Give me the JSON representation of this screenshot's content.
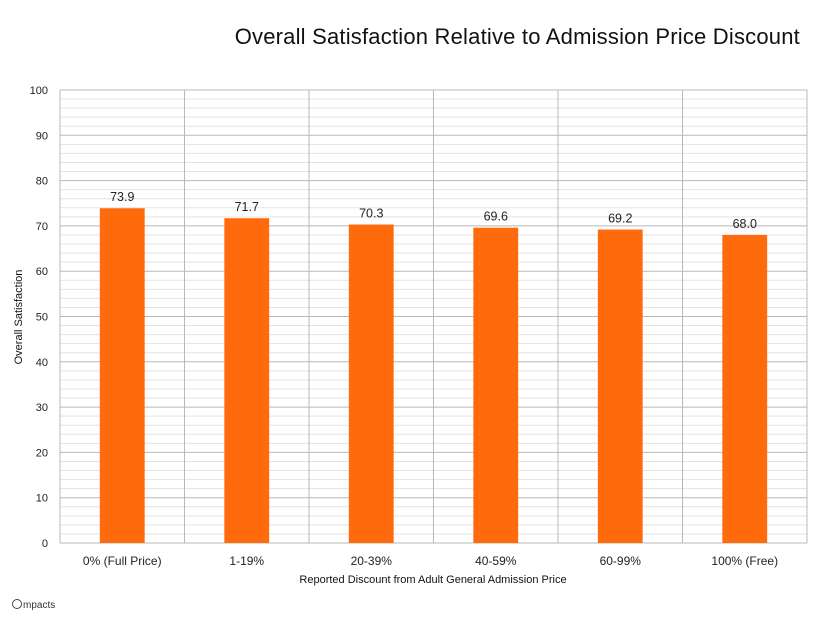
{
  "chart_data": {
    "type": "bar",
    "title": "Overall Satisfaction Relative to Admission Price Discount",
    "xlabel": "Reported Discount from Adult General Admission Price",
    "ylabel": "Overall Satisfaction",
    "categories": [
      "0% (Full Price)",
      "1-19%",
      "20-39%",
      "40-59%",
      "60-99%",
      "100% (Free)"
    ],
    "values": [
      73.9,
      71.7,
      70.3,
      69.6,
      69.2,
      68.0
    ],
    "data_labels": [
      "73.9",
      "71.7",
      "70.3",
      "69.6",
      "69.2",
      "68.0"
    ],
    "ylim": [
      0,
      100
    ],
    "yticks": [
      0,
      10,
      20,
      30,
      40,
      50,
      60,
      70,
      80,
      90,
      100
    ],
    "grid": true,
    "legend": "none",
    "bar_color": "#FF6A0D"
  },
  "branding": {
    "logo_text": "mpacts"
  }
}
